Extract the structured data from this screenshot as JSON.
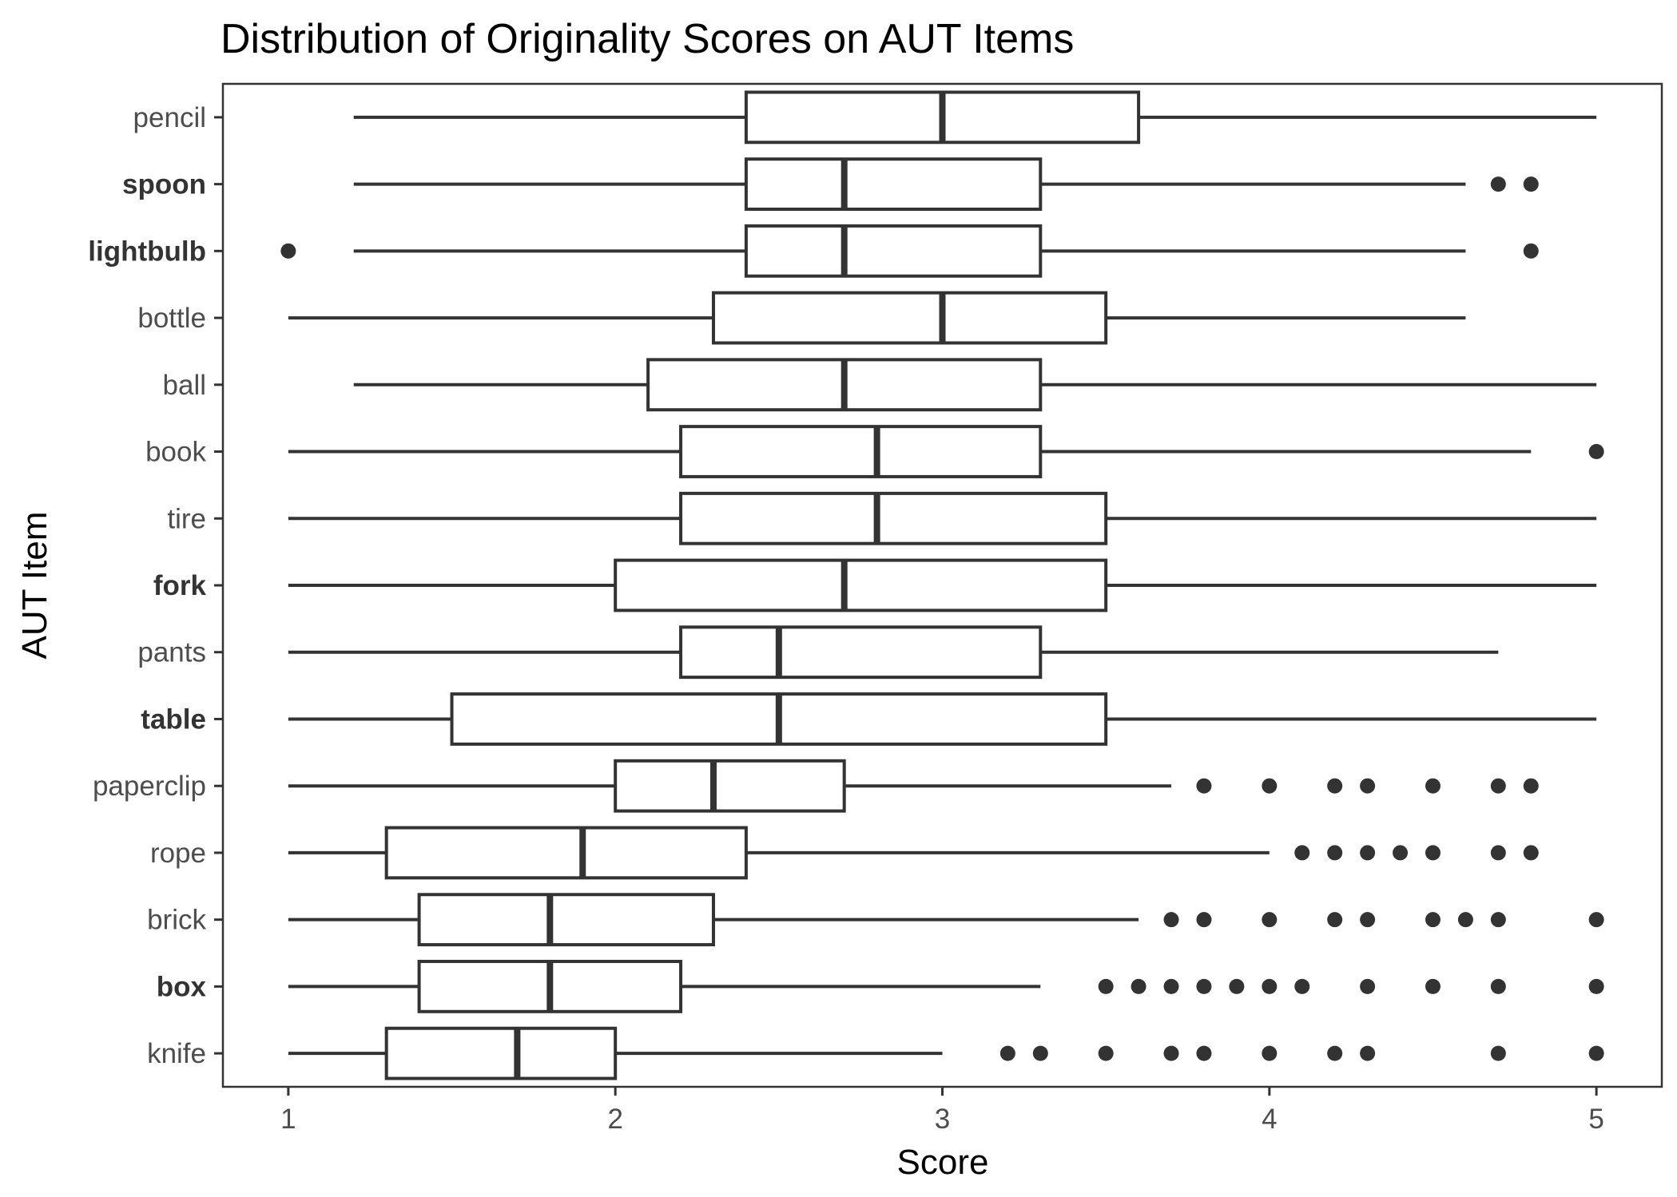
{
  "chart_data": {
    "type": "boxplot",
    "orientation": "horizontal",
    "title": "Distribution of Originality Scores on AUT Items",
    "xlabel": "Score",
    "ylabel": "AUT Item",
    "xlim": [
      0.8,
      5.2
    ],
    "x_ticks": [
      "1",
      "2",
      "3",
      "4",
      "5"
    ],
    "grid": false,
    "colors": {
      "box_stroke": "#333333",
      "box_fill": "#ffffff",
      "point": "#333333"
    },
    "categories": [
      "pencil",
      "spoon",
      "lightbulb",
      "bottle",
      "ball",
      "book",
      "tire",
      "fork",
      "pants",
      "table",
      "paperclip",
      "rope",
      "brick",
      "box",
      "knife"
    ],
    "bold_categories": [
      "spoon",
      "lightbulb",
      "fork",
      "table",
      "box"
    ],
    "boxes": [
      {
        "label": "pencil",
        "whisker_low": 1.2,
        "q1": 2.4,
        "median": 3.0,
        "q3": 3.6,
        "whisker_high": 5.0,
        "outliers": []
      },
      {
        "label": "spoon",
        "whisker_low": 1.2,
        "q1": 2.4,
        "median": 2.7,
        "q3": 3.3,
        "whisker_high": 4.6,
        "outliers": [
          4.7,
          4.8
        ]
      },
      {
        "label": "lightbulb",
        "whisker_low": 1.2,
        "q1": 2.4,
        "median": 2.7,
        "q3": 3.3,
        "whisker_high": 4.6,
        "outliers": [
          1.0,
          4.8
        ]
      },
      {
        "label": "bottle",
        "whisker_low": 1.0,
        "q1": 2.3,
        "median": 3.0,
        "q3": 3.5,
        "whisker_high": 4.6,
        "outliers": []
      },
      {
        "label": "ball",
        "whisker_low": 1.2,
        "q1": 2.1,
        "median": 2.7,
        "q3": 3.3,
        "whisker_high": 5.0,
        "outliers": []
      },
      {
        "label": "book",
        "whisker_low": 1.0,
        "q1": 2.2,
        "median": 2.8,
        "q3": 3.3,
        "whisker_high": 4.8,
        "outliers": [
          5.0
        ]
      },
      {
        "label": "tire",
        "whisker_low": 1.0,
        "q1": 2.2,
        "median": 2.8,
        "q3": 3.5,
        "whisker_high": 5.0,
        "outliers": []
      },
      {
        "label": "fork",
        "whisker_low": 1.0,
        "q1": 2.0,
        "median": 2.7,
        "q3": 3.5,
        "whisker_high": 5.0,
        "outliers": []
      },
      {
        "label": "pants",
        "whisker_low": 1.0,
        "q1": 2.2,
        "median": 2.5,
        "q3": 3.3,
        "whisker_high": 4.7,
        "outliers": []
      },
      {
        "label": "table",
        "whisker_low": 1.0,
        "q1": 1.5,
        "median": 2.5,
        "q3": 3.5,
        "whisker_high": 5.0,
        "outliers": []
      },
      {
        "label": "paperclip",
        "whisker_low": 1.0,
        "q1": 2.0,
        "median": 2.3,
        "q3": 2.7,
        "whisker_high": 3.7,
        "outliers": [
          3.8,
          4.0,
          4.2,
          4.3,
          4.5,
          4.7,
          4.8
        ]
      },
      {
        "label": "rope",
        "whisker_low": 1.0,
        "q1": 1.3,
        "median": 1.9,
        "q3": 2.4,
        "whisker_high": 4.0,
        "outliers": [
          4.1,
          4.2,
          4.3,
          4.4,
          4.5,
          4.7,
          4.8
        ]
      },
      {
        "label": "brick",
        "whisker_low": 1.0,
        "q1": 1.4,
        "median": 1.8,
        "q3": 2.3,
        "whisker_high": 3.6,
        "outliers": [
          3.7,
          3.8,
          4.0,
          4.2,
          4.3,
          4.5,
          4.6,
          4.7,
          5.0
        ]
      },
      {
        "label": "box",
        "whisker_low": 1.0,
        "q1": 1.4,
        "median": 1.8,
        "q3": 2.2,
        "whisker_high": 3.3,
        "outliers": [
          3.5,
          3.6,
          3.7,
          3.8,
          3.9,
          4.0,
          4.1,
          4.3,
          4.5,
          4.7,
          5.0
        ]
      },
      {
        "label": "knife",
        "whisker_low": 1.0,
        "q1": 1.3,
        "median": 1.7,
        "q3": 2.0,
        "whisker_high": 3.0,
        "outliers": [
          3.2,
          3.3,
          3.5,
          3.7,
          3.8,
          4.0,
          4.2,
          4.3,
          4.7,
          5.0
        ]
      }
    ]
  }
}
